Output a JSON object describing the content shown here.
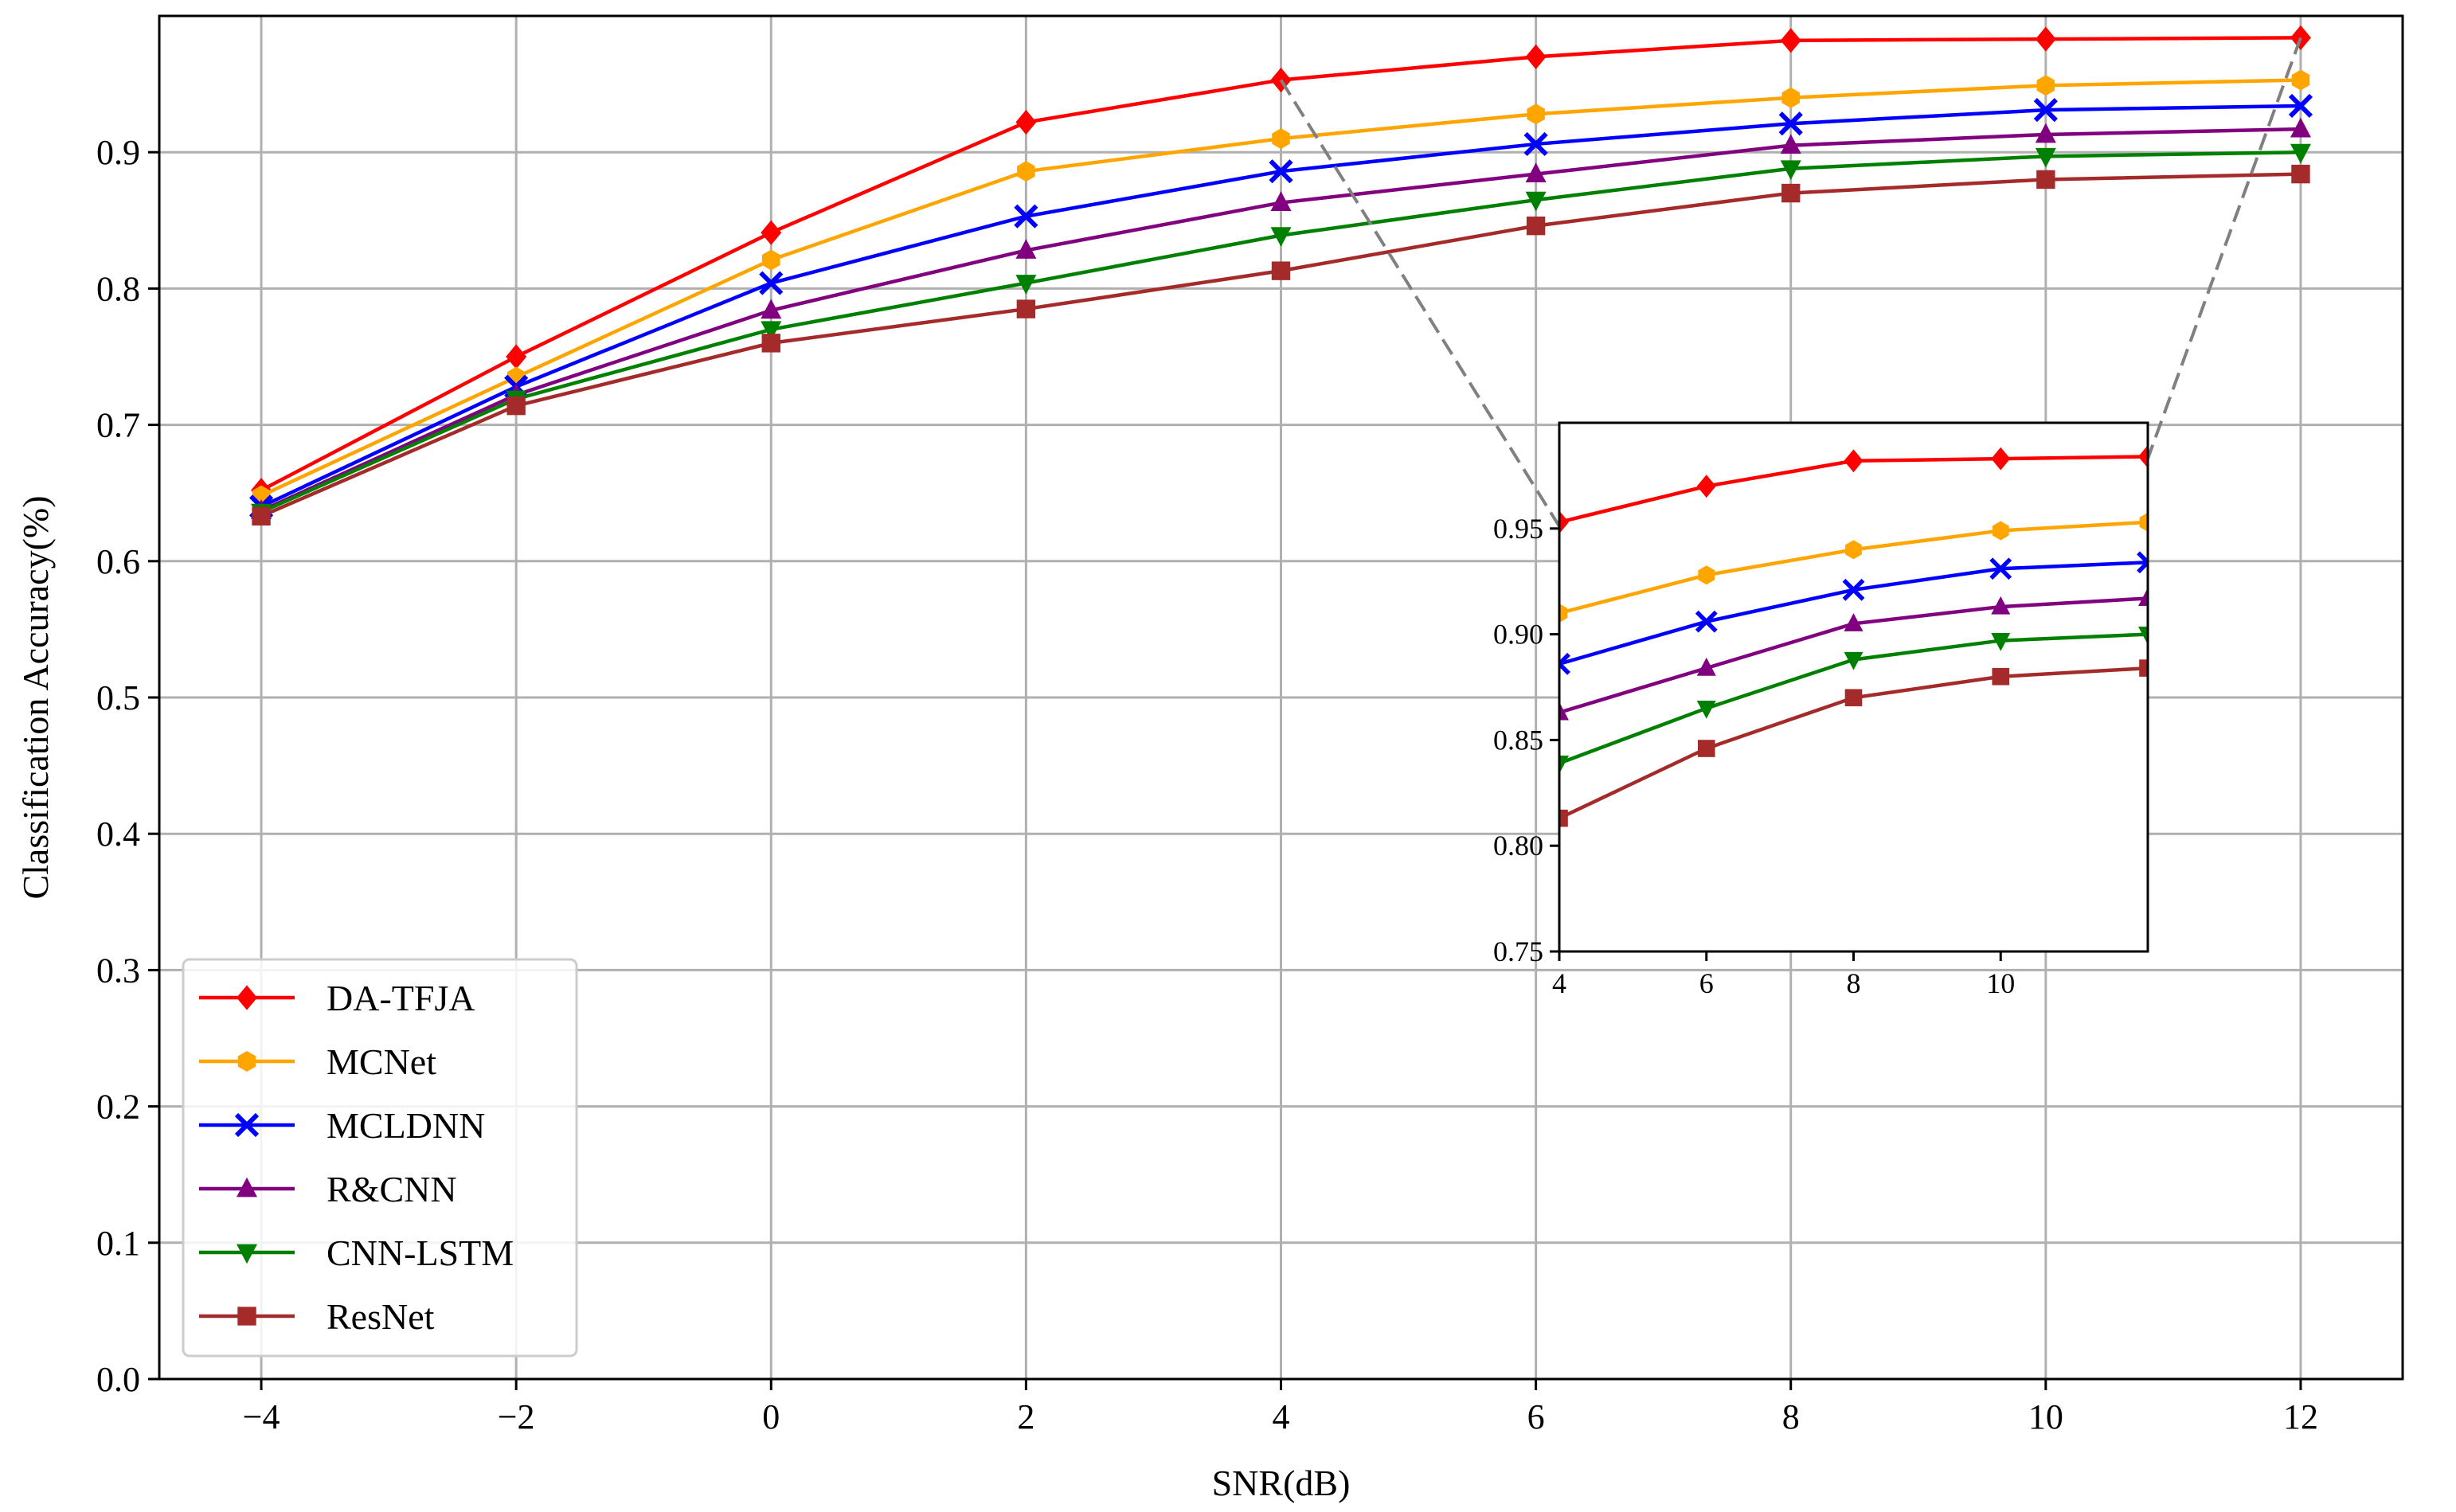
{
  "chart_data": {
    "type": "line",
    "title": "",
    "xlabel": "SNR(dB)",
    "ylabel": "Classification Accuracy(%)",
    "x": [
      -4,
      -2,
      0,
      2,
      4,
      6,
      8,
      10,
      12
    ],
    "xlim": [
      -4.8,
      12.8
    ],
    "ylim": [
      0,
      1.0
    ],
    "xticks": [
      -4,
      -2,
      0,
      2,
      4,
      6,
      8,
      10,
      12
    ],
    "xtick_labels": [
      "−4",
      "−2",
      "0",
      "2",
      "4",
      "6",
      "8",
      "10",
      "12"
    ],
    "yticks": [
      0.0,
      0.1,
      0.2,
      0.3,
      0.4,
      0.5,
      0.6,
      0.7,
      0.8,
      0.9
    ],
    "ytick_labels": [
      "0.0",
      "0.1",
      "0.2",
      "0.3",
      "0.4",
      "0.5",
      "0.6",
      "0.7",
      "0.8",
      "0.9"
    ],
    "grid": true,
    "legend_position": "lower-left",
    "series": [
      {
        "name": "DA-TFJA",
        "color": "#ff0000",
        "marker": "diamond",
        "values": [
          0.652,
          0.75,
          0.841,
          0.922,
          0.953,
          0.97,
          0.982,
          0.983,
          0.984
        ]
      },
      {
        "name": "MCNet",
        "color": "#ffa500",
        "marker": "hexagon",
        "values": [
          0.648,
          0.735,
          0.821,
          0.886,
          0.91,
          0.928,
          0.94,
          0.949,
          0.953
        ]
      },
      {
        "name": "MCLDNN",
        "color": "#0000ff",
        "marker": "x",
        "values": [
          0.64,
          0.728,
          0.804,
          0.853,
          0.886,
          0.906,
          0.921,
          0.931,
          0.934
        ]
      },
      {
        "name": "R&CNN",
        "color": "#800080",
        "marker": "triangle-up",
        "values": [
          0.637,
          0.722,
          0.784,
          0.828,
          0.863,
          0.884,
          0.905,
          0.913,
          0.917
        ]
      },
      {
        "name": "CNN-LSTM",
        "color": "#008000",
        "marker": "triangle-down",
        "values": [
          0.636,
          0.719,
          0.77,
          0.804,
          0.839,
          0.865,
          0.888,
          0.897,
          0.9
        ]
      },
      {
        "name": "ResNet",
        "color": "#a52a2a",
        "marker": "square",
        "values": [
          0.633,
          0.714,
          0.76,
          0.785,
          0.813,
          0.846,
          0.87,
          0.88,
          0.884
        ]
      }
    ],
    "inset": {
      "x_range": [
        4,
        12
      ],
      "ylim": [
        0.75,
        1.0
      ],
      "xticks": [
        4,
        6,
        8,
        10
      ],
      "xtick_labels": [
        "4",
        "6",
        "8",
        "10"
      ],
      "yticks": [
        0.75,
        0.8,
        0.85,
        0.9,
        0.95
      ],
      "ytick_labels": [
        "0.75",
        "0.80",
        "0.85",
        "0.90",
        "0.95"
      ],
      "connector_color": "#808080"
    }
  }
}
